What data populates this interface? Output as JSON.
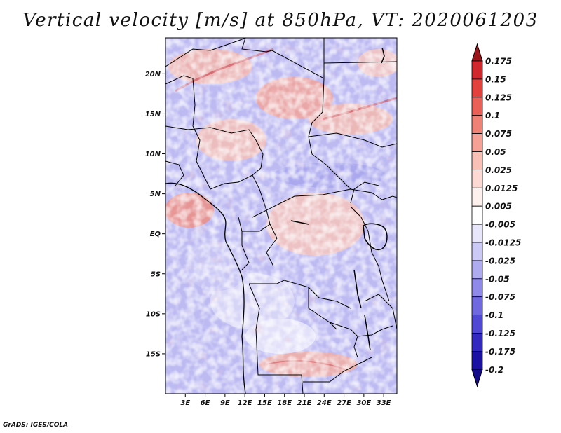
{
  "title": "Vertical velocity [m/s] at 850hPa, VT: 2020061203",
  "footer": "GrADS: IGES/COLA",
  "map": {
    "lat_range": [
      -20,
      24.5
    ],
    "lon_range": [
      0,
      35
    ],
    "lat_ticks": [
      {
        "value": 20,
        "label": "20N"
      },
      {
        "value": 15,
        "label": "15N"
      },
      {
        "value": 10,
        "label": "10N"
      },
      {
        "value": 5,
        "label": "5N"
      },
      {
        "value": 0,
        "label": "EQ"
      },
      {
        "value": -5,
        "label": "5S"
      },
      {
        "value": -10,
        "label": "10S"
      },
      {
        "value": -15,
        "label": "15S"
      }
    ],
    "lon_ticks": [
      {
        "value": 3,
        "label": "3E"
      },
      {
        "value": 6,
        "label": "6E"
      },
      {
        "value": 9,
        "label": "9E"
      },
      {
        "value": 12,
        "label": "12E"
      },
      {
        "value": 15,
        "label": "15E"
      },
      {
        "value": 18,
        "label": "18E"
      },
      {
        "value": 21,
        "label": "21E"
      },
      {
        "value": 24,
        "label": "24E"
      },
      {
        "value": 27,
        "label": "27E"
      },
      {
        "value": 30,
        "label": "30E"
      },
      {
        "value": 33,
        "label": "33E"
      }
    ]
  },
  "colorbar": {
    "levels": [
      {
        "label": "0.175",
        "color": "#b81c20"
      },
      {
        "label": "0.15",
        "color": "#d0282c"
      },
      {
        "label": "0.125",
        "color": "#e2413c"
      },
      {
        "label": "0.1",
        "color": "#ea6057"
      },
      {
        "label": "0.075",
        "color": "#f08175"
      },
      {
        "label": "0.05",
        "color": "#f5a196"
      },
      {
        "label": "0.025",
        "color": "#f9c0b6"
      },
      {
        "label": "0.0125",
        "color": "#fcd9d2"
      },
      {
        "label": "0.005",
        "color": "#fef0ec"
      },
      {
        "label": "-0.005",
        "color": "#ffffff"
      },
      {
        "label": "-0.0125",
        "color": "#e7e6fb"
      },
      {
        "label": "-0.025",
        "color": "#cbc9f6"
      },
      {
        "label": "-0.05",
        "color": "#aeabf0"
      },
      {
        "label": "-0.075",
        "color": "#8f8aea"
      },
      {
        "label": "-0.1",
        "color": "#6f68e1"
      },
      {
        "label": "-0.125",
        "color": "#5047d4"
      },
      {
        "label": "-0.175",
        "color": "#3328c0"
      },
      {
        "label": "-0.2",
        "color": "#1b10a4"
      }
    ],
    "top_cap_color": "#9c1318",
    "bottom_cap_color": "#140a8c"
  }
}
